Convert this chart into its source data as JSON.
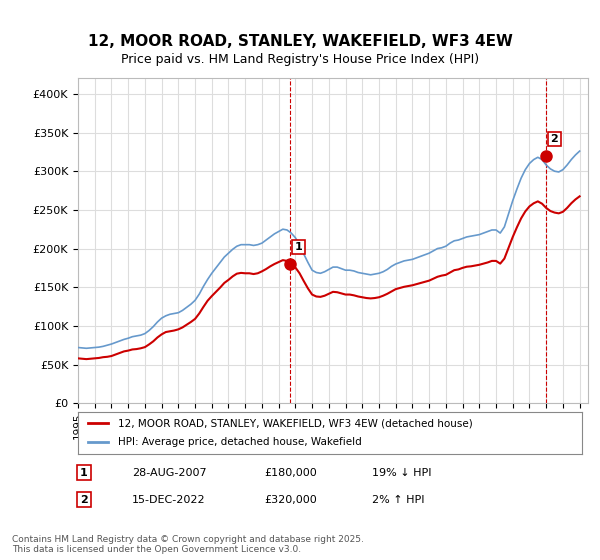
{
  "title": "12, MOOR ROAD, STANLEY, WAKEFIELD, WF3 4EW",
  "subtitle": "Price paid vs. HM Land Registry's House Price Index (HPI)",
  "title_fontsize": 11,
  "subtitle_fontsize": 9,
  "background_color": "#ffffff",
  "plot_bg_color": "#ffffff",
  "grid_color": "#dddddd",
  "ylabel_ticks": [
    "£0",
    "£50K",
    "£100K",
    "£150K",
    "£200K",
    "£250K",
    "£300K",
    "£350K",
    "£400K"
  ],
  "ytick_values": [
    0,
    50000,
    100000,
    150000,
    200000,
    250000,
    300000,
    350000,
    400000
  ],
  "ylim": [
    0,
    420000
  ],
  "xlim_start": 1995.0,
  "xlim_end": 2025.5,
  "hpi_color": "#6699cc",
  "price_color": "#cc0000",
  "legend_label_price": "12, MOOR ROAD, STANLEY, WAKEFIELD, WF3 4EW (detached house)",
  "legend_label_hpi": "HPI: Average price, detached house, Wakefield",
  "transaction1_label": "1",
  "transaction1_date": "28-AUG-2007",
  "transaction1_price": "£180,000",
  "transaction1_hpi": "19% ↓ HPI",
  "transaction1_x": 2007.65,
  "transaction1_y": 180000,
  "transaction2_label": "2",
  "transaction2_date": "15-DEC-2022",
  "transaction2_price": "£320,000",
  "transaction2_hpi": "2% ↑ HPI",
  "transaction2_x": 2022.96,
  "transaction2_y": 320000,
  "footer": "Contains HM Land Registry data © Crown copyright and database right 2025.\nThis data is licensed under the Open Government Licence v3.0.",
  "hpi_data_x": [
    1995.0,
    1995.25,
    1995.5,
    1995.75,
    1996.0,
    1996.25,
    1996.5,
    1996.75,
    1997.0,
    1997.25,
    1997.5,
    1997.75,
    1998.0,
    1998.25,
    1998.5,
    1998.75,
    1999.0,
    1999.25,
    1999.5,
    1999.75,
    2000.0,
    2000.25,
    2000.5,
    2000.75,
    2001.0,
    2001.25,
    2001.5,
    2001.75,
    2002.0,
    2002.25,
    2002.5,
    2002.75,
    2003.0,
    2003.25,
    2003.5,
    2003.75,
    2004.0,
    2004.25,
    2004.5,
    2004.75,
    2005.0,
    2005.25,
    2005.5,
    2005.75,
    2006.0,
    2006.25,
    2006.5,
    2006.75,
    2007.0,
    2007.25,
    2007.5,
    2007.75,
    2008.0,
    2008.25,
    2008.5,
    2008.75,
    2009.0,
    2009.25,
    2009.5,
    2009.75,
    2010.0,
    2010.25,
    2010.5,
    2010.75,
    2011.0,
    2011.25,
    2011.5,
    2011.75,
    2012.0,
    2012.25,
    2012.5,
    2012.75,
    2013.0,
    2013.25,
    2013.5,
    2013.75,
    2014.0,
    2014.25,
    2014.5,
    2014.75,
    2015.0,
    2015.25,
    2015.5,
    2015.75,
    2016.0,
    2016.25,
    2016.5,
    2016.75,
    2017.0,
    2017.25,
    2017.5,
    2017.75,
    2018.0,
    2018.25,
    2018.5,
    2018.75,
    2019.0,
    2019.25,
    2019.5,
    2019.75,
    2020.0,
    2020.25,
    2020.5,
    2020.75,
    2021.0,
    2021.25,
    2021.5,
    2021.75,
    2022.0,
    2022.25,
    2022.5,
    2022.75,
    2023.0,
    2023.25,
    2023.5,
    2023.75,
    2024.0,
    2024.25,
    2024.5,
    2024.75,
    2025.0
  ],
  "hpi_data_y": [
    72000,
    71500,
    71000,
    71500,
    72000,
    72500,
    73500,
    75000,
    76500,
    78500,
    80500,
    82500,
    84000,
    86000,
    87000,
    88000,
    90000,
    94000,
    99000,
    105000,
    110000,
    113000,
    115000,
    116000,
    117000,
    120000,
    124000,
    128000,
    133000,
    141000,
    151000,
    160000,
    168000,
    175000,
    182000,
    189000,
    194000,
    199000,
    203000,
    205000,
    205000,
    205000,
    204000,
    205000,
    207000,
    211000,
    215000,
    219000,
    222000,
    225000,
    224000,
    220000,
    214000,
    205000,
    193000,
    182000,
    172000,
    169000,
    168000,
    170000,
    173000,
    176000,
    176000,
    174000,
    172000,
    172000,
    171000,
    169000,
    168000,
    167000,
    166000,
    167000,
    168000,
    170000,
    173000,
    177000,
    180000,
    182000,
    184000,
    185000,
    186000,
    188000,
    190000,
    192000,
    194000,
    197000,
    200000,
    201000,
    203000,
    207000,
    210000,
    211000,
    213000,
    215000,
    216000,
    217000,
    218000,
    220000,
    222000,
    224000,
    224000,
    220000,
    228000,
    245000,
    262000,
    277000,
    291000,
    302000,
    310000,
    315000,
    318000,
    315000,
    308000,
    303000,
    300000,
    299000,
    302000,
    308000,
    315000,
    321000,
    326000
  ],
  "price_data_x": [
    1995.0,
    1995.25,
    1995.5,
    1995.75,
    1996.0,
    1996.25,
    1996.5,
    1996.75,
    1997.0,
    1997.25,
    1997.5,
    1997.75,
    1998.0,
    1998.25,
    1998.5,
    1998.75,
    1999.0,
    1999.25,
    1999.5,
    1999.75,
    2000.0,
    2000.25,
    2000.5,
    2000.75,
    2001.0,
    2001.25,
    2001.5,
    2001.75,
    2002.0,
    2002.25,
    2002.5,
    2002.75,
    2003.0,
    2003.25,
    2003.5,
    2003.75,
    2004.0,
    2004.25,
    2004.5,
    2004.75,
    2005.0,
    2005.25,
    2005.5,
    2005.75,
    2006.0,
    2006.25,
    2006.5,
    2006.75,
    2007.0,
    2007.25,
    2007.5,
    2007.75,
    2008.0,
    2008.25,
    2008.5,
    2008.75,
    2009.0,
    2009.25,
    2009.5,
    2009.75,
    2010.0,
    2010.25,
    2010.5,
    2010.75,
    2011.0,
    2011.25,
    2011.5,
    2011.75,
    2012.0,
    2012.25,
    2012.5,
    2012.75,
    2013.0,
    2013.25,
    2013.5,
    2013.75,
    2014.0,
    2014.25,
    2014.5,
    2014.75,
    2015.0,
    2015.25,
    2015.5,
    2015.75,
    2016.0,
    2016.25,
    2016.5,
    2016.75,
    2017.0,
    2017.25,
    2017.5,
    2017.75,
    2018.0,
    2018.25,
    2018.5,
    2018.75,
    2019.0,
    2019.25,
    2019.5,
    2019.75,
    2020.0,
    2020.25,
    2020.5,
    2020.75,
    2021.0,
    2021.25,
    2021.5,
    2021.75,
    2022.0,
    2022.25,
    2022.5,
    2022.75,
    2023.0,
    2023.25,
    2023.5,
    2023.75,
    2024.0,
    2024.25,
    2024.5,
    2024.75,
    2025.0
  ],
  "price_data_y": [
    58000,
    57500,
    57000,
    57500,
    58000,
    58500,
    59500,
    60000,
    61000,
    63000,
    65000,
    67000,
    68000,
    69500,
    70000,
    71000,
    72500,
    76000,
    80000,
    85000,
    89000,
    92000,
    93000,
    94000,
    95500,
    98000,
    101500,
    105000,
    109000,
    116000,
    124500,
    132500,
    138500,
    144000,
    149500,
    155500,
    159500,
    164000,
    167500,
    168500,
    168000,
    168000,
    167000,
    168000,
    170500,
    173500,
    177000,
    180000,
    182500,
    185000,
    184000,
    180500,
    175500,
    168000,
    158000,
    148500,
    140500,
    138000,
    137500,
    139000,
    141500,
    144000,
    143500,
    142000,
    140500,
    140500,
    139500,
    138000,
    137000,
    136000,
    135500,
    136000,
    137000,
    139000,
    141500,
    144500,
    147500,
    149000,
    150500,
    151500,
    152500,
    154000,
    155500,
    157000,
    158500,
    161000,
    163500,
    165000,
    166000,
    169000,
    172000,
    173000,
    175000,
    176500,
    177000,
    178000,
    179000,
    180500,
    182000,
    184000,
    184000,
    180500,
    187000,
    201000,
    215000,
    227500,
    239000,
    248000,
    254500,
    258500,
    261000,
    258000,
    252500,
    248500,
    246500,
    245500,
    247500,
    252500,
    258500,
    263500,
    267500
  ]
}
